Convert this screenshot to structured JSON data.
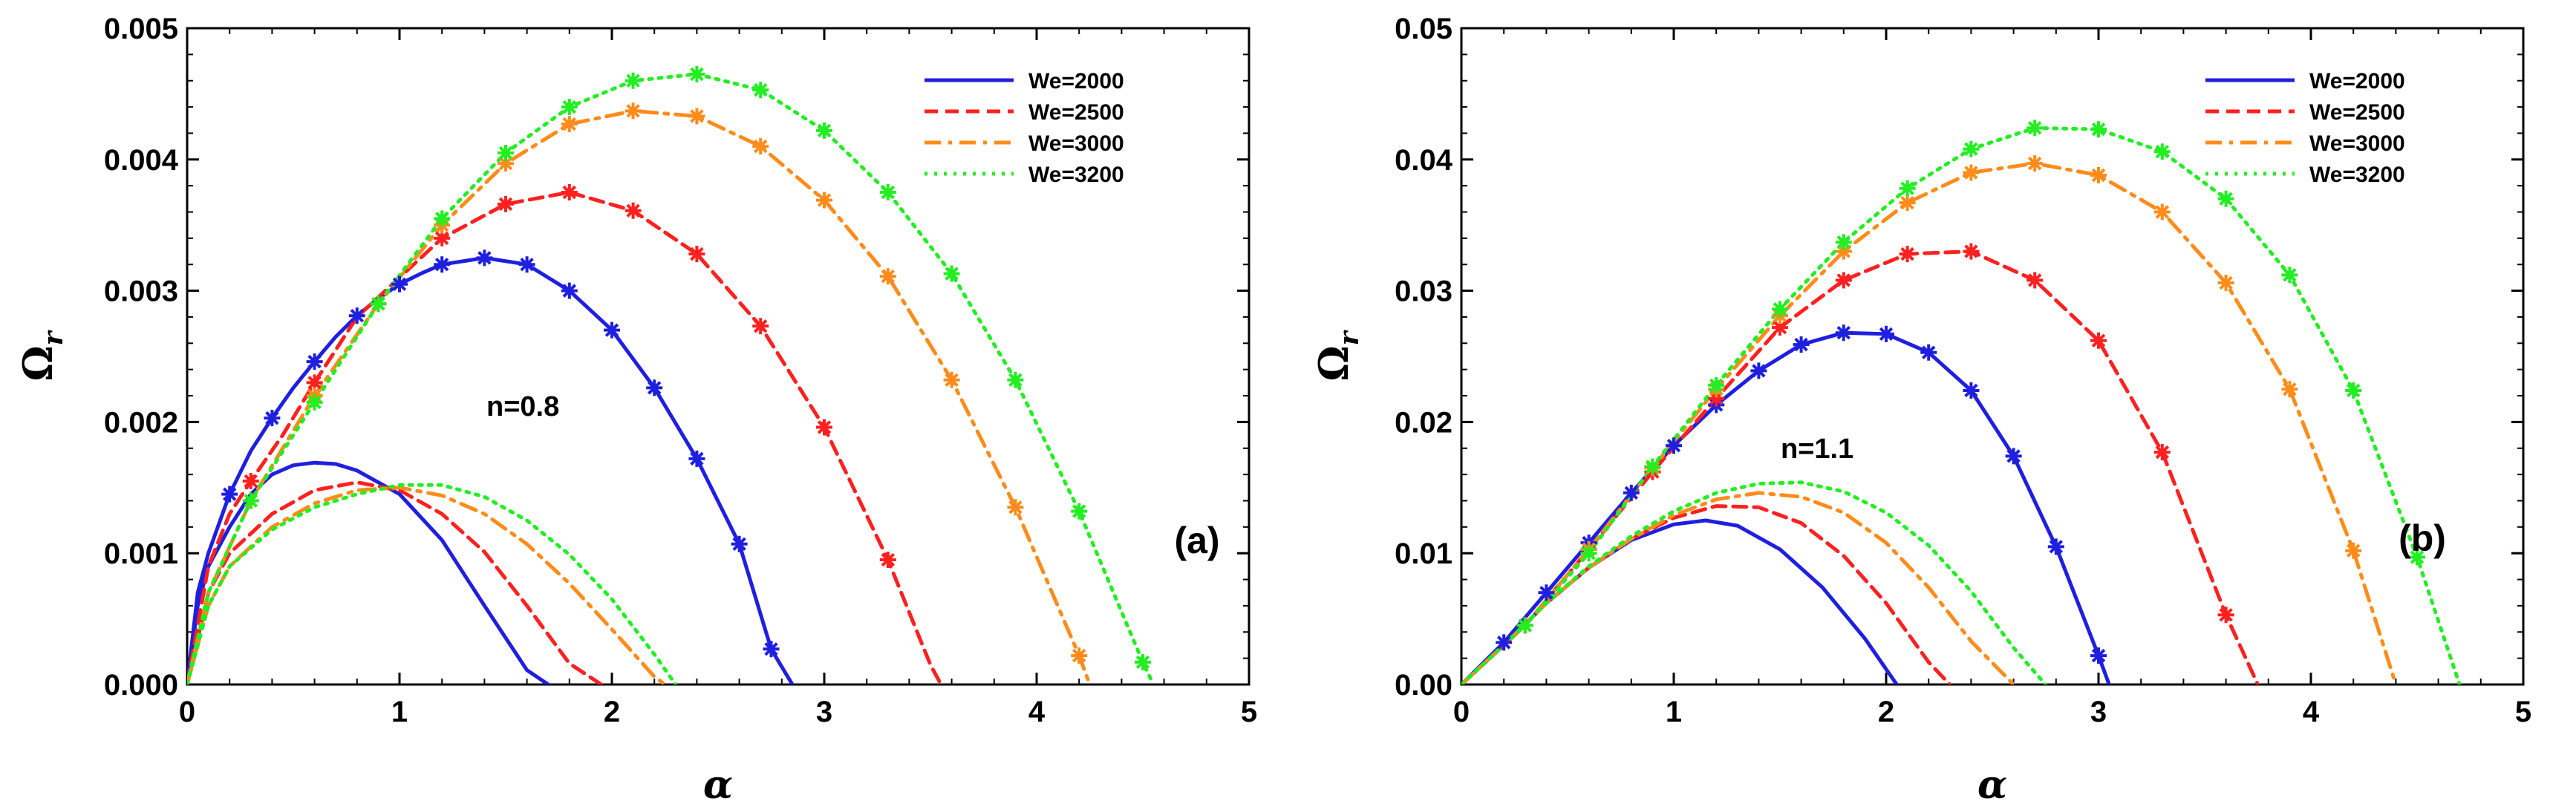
{
  "chart_data": [
    {
      "type": "line",
      "panel_label": "(a)",
      "annotation": "n=0.8",
      "xlabel": "α",
      "ylabel": "Ω",
      "ylabel_sub": "r",
      "xlim": [
        0,
        5
      ],
      "ylim": [
        0,
        0.005
      ],
      "x_ticks": [
        "0",
        "1",
        "2",
        "3",
        "4",
        "5"
      ],
      "y_ticks": [
        "0.000",
        "0.001",
        "0.002",
        "0.003",
        "0.004",
        "0.005"
      ],
      "legend": [
        "We=2000",
        "We=2500",
        "We=3000",
        "We=3200"
      ],
      "series": [
        {
          "name": "We=2000",
          "style": "solid",
          "color": "#1f1fe0",
          "x": [
            0,
            0.05,
            0.1,
            0.2,
            0.3,
            0.4,
            0.5,
            0.6,
            0.7,
            0.8,
            0.9,
            1.0,
            1.1,
            1.2,
            1.4,
            1.6,
            1.8,
            2.0,
            2.2,
            2.4,
            2.6,
            2.75,
            2.85
          ],
          "y": [
            0,
            0.0007,
            0.001,
            0.00145,
            0.00178,
            0.00203,
            0.00226,
            0.00246,
            0.00265,
            0.00281,
            0.00294,
            0.00305,
            0.00313,
            0.0032,
            0.00325,
            0.0032,
            0.003,
            0.0027,
            0.00226,
            0.00172,
            0.00107,
            0.00027,
            0
          ]
        },
        {
          "name": "We=2000",
          "style": "solid",
          "color": "#1f1fe0",
          "x": [
            0,
            0.05,
            0.1,
            0.2,
            0.3,
            0.4,
            0.5,
            0.6,
            0.7,
            0.8,
            1.0,
            1.2,
            1.4,
            1.6,
            1.7
          ],
          "y": [
            0,
            0.0006,
            0.0009,
            0.0012,
            0.00145,
            0.0016,
            0.00167,
            0.00169,
            0.00168,
            0.00163,
            0.00145,
            0.0011,
            0.0006,
            0.00011,
            0
          ]
        },
        {
          "name": "We=2500",
          "style": "dashed",
          "color": "#ff2020",
          "x": [
            0,
            0.1,
            0.2,
            0.3,
            0.45,
            0.6,
            0.8,
            1.0,
            1.2,
            1.5,
            1.8,
            2.1,
            2.4,
            2.7,
            3.0,
            3.3,
            3.5,
            3.55
          ],
          "y": [
            0,
            0.0009,
            0.0013,
            0.00155,
            0.0019,
            0.0023,
            0.0028,
            0.0031,
            0.0034,
            0.00366,
            0.00375,
            0.00361,
            0.00328,
            0.00273,
            0.00196,
            0.00095,
            0.00015,
            0
          ]
        },
        {
          "name": "We=2500",
          "style": "dashed",
          "color": "#ff2020",
          "x": [
            0,
            0.1,
            0.2,
            0.4,
            0.6,
            0.8,
            1.0,
            1.2,
            1.4,
            1.6,
            1.8,
            1.95
          ],
          "y": [
            0,
            0.0007,
            0.001,
            0.0013,
            0.00148,
            0.00154,
            0.00148,
            0.0013,
            0.00101,
            0.0006,
            0.00016,
            0
          ]
        },
        {
          "name": "We=3000",
          "style": "dashdot",
          "color": "#ff8c1a",
          "x": [
            0,
            0.1,
            0.3,
            0.6,
            0.9,
            1.2,
            1.5,
            1.8,
            2.1,
            2.4,
            2.7,
            3.0,
            3.3,
            3.6,
            3.9,
            4.2,
            4.25
          ],
          "y": [
            0,
            0.0007,
            0.0014,
            0.0022,
            0.0029,
            0.0035,
            0.00397,
            0.00427,
            0.00437,
            0.00433,
            0.0041,
            0.00369,
            0.00311,
            0.00232,
            0.00135,
            0.00022,
            0
          ]
        },
        {
          "name": "We=3000",
          "style": "dashdot",
          "color": "#ff8c1a",
          "x": [
            0,
            0.1,
            0.2,
            0.4,
            0.6,
            0.8,
            1.0,
            1.2,
            1.4,
            1.6,
            1.8,
            2.0,
            2.2,
            2.25
          ],
          "y": [
            0,
            0.0006,
            0.0009,
            0.0012,
            0.00138,
            0.00148,
            0.0015,
            0.00144,
            0.0013,
            0.00107,
            0.00077,
            0.00042,
            6e-05,
            0
          ]
        },
        {
          "name": "We=3200",
          "style": "dotted",
          "color": "#22ee22",
          "x": [
            0,
            0.1,
            0.3,
            0.6,
            0.9,
            1.2,
            1.5,
            1.8,
            2.1,
            2.4,
            2.7,
            3.0,
            3.3,
            3.6,
            3.9,
            4.2,
            4.5,
            4.55
          ],
          "y": [
            0,
            0.0007,
            0.0014,
            0.00215,
            0.0029,
            0.00355,
            0.00405,
            0.0044,
            0.0046,
            0.00465,
            0.00453,
            0.00422,
            0.00375,
            0.00313,
            0.00232,
            0.00132,
            0.00017,
            0
          ]
        },
        {
          "name": "We=3200",
          "style": "dotted",
          "color": "#22ee22",
          "x": [
            0,
            0.1,
            0.2,
            0.4,
            0.6,
            0.8,
            1.0,
            1.2,
            1.4,
            1.6,
            1.8,
            2.0,
            2.2,
            2.3
          ],
          "y": [
            0,
            0.0006,
            0.0009,
            0.00118,
            0.00135,
            0.00145,
            0.00152,
            0.00152,
            0.00143,
            0.00125,
            0.00099,
            0.00065,
            0.00023,
            0
          ]
        }
      ],
      "markers": [
        {
          "color": "#1f1fe0",
          "x": [
            0.2,
            0.4,
            0.6,
            0.8,
            1.0,
            1.2,
            1.4,
            1.6,
            1.8,
            2.0,
            2.2,
            2.4,
            2.6,
            2.75
          ],
          "y": [
            0.00145,
            0.00203,
            0.00246,
            0.00281,
            0.00305,
            0.0032,
            0.00325,
            0.0032,
            0.003,
            0.0027,
            0.00226,
            0.00172,
            0.00107,
            0.00027
          ]
        },
        {
          "color": "#ff2020",
          "x": [
            0.3,
            0.6,
            0.9,
            1.2,
            1.5,
            1.8,
            2.1,
            2.4,
            2.7,
            3.0,
            3.3
          ],
          "y": [
            0.00155,
            0.0023,
            0.0029,
            0.0034,
            0.00366,
            0.00375,
            0.00361,
            0.00328,
            0.00273,
            0.00196,
            0.00095
          ]
        },
        {
          "color": "#ff8c1a",
          "x": [
            0.3,
            0.6,
            0.9,
            1.2,
            1.5,
            1.8,
            2.1,
            2.4,
            2.7,
            3.0,
            3.3,
            3.6,
            3.9,
            4.2
          ],
          "y": [
            0.0014,
            0.0022,
            0.0029,
            0.0035,
            0.00397,
            0.00427,
            0.00437,
            0.00433,
            0.0041,
            0.00369,
            0.00311,
            0.00232,
            0.00135,
            0.00022
          ]
        },
        {
          "color": "#22ee22",
          "x": [
            0.3,
            0.6,
            0.9,
            1.2,
            1.5,
            1.8,
            2.1,
            2.4,
            2.7,
            3.0,
            3.3,
            3.6,
            3.9,
            4.2,
            4.5
          ],
          "y": [
            0.0014,
            0.00215,
            0.0029,
            0.00355,
            0.00405,
            0.0044,
            0.0046,
            0.00465,
            0.00453,
            0.00422,
            0.00375,
            0.00313,
            0.00232,
            0.00132,
            0.00017
          ]
        }
      ]
    },
    {
      "type": "line",
      "panel_label": "(b)",
      "annotation": "n=1.1",
      "xlabel": "α",
      "ylabel": "Ω",
      "ylabel_sub": "r",
      "xlim": [
        0,
        5
      ],
      "ylim": [
        0,
        0.05
      ],
      "x_ticks": [
        "0",
        "1",
        "2",
        "3",
        "4",
        "5"
      ],
      "y_ticks": [
        "0.00",
        "0.01",
        "0.02",
        "0.03",
        "0.04",
        "0.05"
      ],
      "legend": [
        "We=2000",
        "We=2500",
        "We=3000",
        "We=3200"
      ],
      "series": [
        {
          "name": "We=2000",
          "style": "solid",
          "color": "#1f1fe0",
          "x": [
            0,
            0.2,
            0.4,
            0.6,
            0.8,
            1.0,
            1.2,
            1.4,
            1.6,
            1.8,
            2.0,
            2.2,
            2.4,
            2.6,
            2.8,
            3.0,
            3.05
          ],
          "y": [
            0,
            0.0032,
            0.007,
            0.0108,
            0.0146,
            0.0182,
            0.0213,
            0.0239,
            0.0259,
            0.0268,
            0.0267,
            0.0253,
            0.0224,
            0.0174,
            0.0105,
            0.0022,
            0
          ]
        },
        {
          "name": "We=2000",
          "style": "solid",
          "color": "#1f1fe0",
          "x": [
            0,
            0.2,
            0.4,
            0.6,
            0.8,
            1.0,
            1.15,
            1.3,
            1.5,
            1.7,
            1.9,
            2.05
          ],
          "y": [
            0,
            0.003,
            0.0062,
            0.0089,
            0.011,
            0.0122,
            0.0125,
            0.0121,
            0.0103,
            0.0074,
            0.0035,
            0
          ]
        },
        {
          "name": "We=2500",
          "style": "dashed",
          "color": "#ff2020",
          "x": [
            0,
            0.3,
            0.6,
            0.9,
            1.2,
            1.5,
            1.8,
            2.1,
            2.4,
            2.7,
            3.0,
            3.3,
            3.6,
            3.75
          ],
          "y": [
            0,
            0.0045,
            0.0103,
            0.0162,
            0.0218,
            0.0272,
            0.0308,
            0.0328,
            0.033,
            0.0308,
            0.0262,
            0.0177,
            0.0053,
            0
          ]
        },
        {
          "name": "We=2500",
          "style": "dashed",
          "color": "#ff2020",
          "x": [
            0,
            0.2,
            0.4,
            0.6,
            0.8,
            1.0,
            1.2,
            1.4,
            1.6,
            1.8,
            2.0,
            2.2,
            2.3
          ],
          "y": [
            0,
            0.003,
            0.0062,
            0.0089,
            0.0111,
            0.0127,
            0.0136,
            0.0135,
            0.0123,
            0.0098,
            0.0062,
            0.0017,
            0
          ]
        },
        {
          "name": "We=3000",
          "style": "dashdot",
          "color": "#ff8c1a",
          "x": [
            0,
            0.3,
            0.6,
            0.9,
            1.2,
            1.5,
            1.8,
            2.1,
            2.4,
            2.7,
            3.0,
            3.3,
            3.6,
            3.9,
            4.2,
            4.4
          ],
          "y": [
            0,
            0.0045,
            0.0103,
            0.0165,
            0.0225,
            0.0281,
            0.033,
            0.0367,
            0.039,
            0.0397,
            0.0388,
            0.036,
            0.0306,
            0.0225,
            0.0102,
            0
          ]
        },
        {
          "name": "We=3000",
          "style": "dashdot",
          "color": "#ff8c1a",
          "x": [
            0,
            0.2,
            0.4,
            0.6,
            0.8,
            1.0,
            1.2,
            1.4,
            1.6,
            1.8,
            2.0,
            2.2,
            2.4,
            2.6
          ],
          "y": [
            0,
            0.003,
            0.0062,
            0.0089,
            0.0111,
            0.0129,
            0.0141,
            0.0146,
            0.0143,
            0.0131,
            0.0108,
            0.0074,
            0.0033,
            0
          ]
        },
        {
          "name": "We=3200",
          "style": "dotted",
          "color": "#22ee22",
          "x": [
            0,
            0.3,
            0.6,
            0.9,
            1.2,
            1.5,
            1.8,
            2.1,
            2.4,
            2.7,
            3.0,
            3.3,
            3.6,
            3.9,
            4.2,
            4.5,
            4.7
          ],
          "y": [
            0,
            0.0045,
            0.01,
            0.0166,
            0.0228,
            0.0286,
            0.0337,
            0.0378,
            0.0408,
            0.0424,
            0.0423,
            0.0406,
            0.037,
            0.0312,
            0.0224,
            0.0097,
            0
          ]
        },
        {
          "name": "We=3200",
          "style": "dotted",
          "color": "#22ee22",
          "x": [
            0,
            0.2,
            0.4,
            0.6,
            0.8,
            1.0,
            1.2,
            1.4,
            1.6,
            1.8,
            2.0,
            2.2,
            2.4,
            2.6,
            2.75
          ],
          "y": [
            0,
            0.003,
            0.0062,
            0.009,
            0.0113,
            0.0132,
            0.0146,
            0.0153,
            0.0154,
            0.0147,
            0.0131,
            0.0106,
            0.0071,
            0.0028,
            0
          ]
        }
      ],
      "markers": [
        {
          "color": "#1f1fe0",
          "x": [
            0.2,
            0.4,
            0.6,
            0.8,
            1.0,
            1.2,
            1.4,
            1.6,
            1.8,
            2.0,
            2.2,
            2.4,
            2.6,
            2.8,
            3.0
          ],
          "y": [
            0.0032,
            0.007,
            0.0108,
            0.0146,
            0.0182,
            0.0213,
            0.0239,
            0.0259,
            0.0268,
            0.0267,
            0.0253,
            0.0224,
            0.0174,
            0.0105,
            0.0022
          ]
        },
        {
          "color": "#ff2020",
          "x": [
            0.3,
            0.6,
            0.9,
            1.2,
            1.5,
            1.8,
            2.1,
            2.4,
            2.7,
            3.0,
            3.3,
            3.6
          ],
          "y": [
            0.0045,
            0.0103,
            0.0162,
            0.0218,
            0.0272,
            0.0308,
            0.0328,
            0.033,
            0.0308,
            0.0262,
            0.0177,
            0.0053
          ]
        },
        {
          "color": "#ff8c1a",
          "x": [
            0.3,
            0.6,
            0.9,
            1.2,
            1.5,
            1.8,
            2.1,
            2.4,
            2.7,
            3.0,
            3.3,
            3.6,
            3.9,
            4.2
          ],
          "y": [
            0.0045,
            0.0103,
            0.0165,
            0.0225,
            0.0281,
            0.033,
            0.0367,
            0.039,
            0.0397,
            0.0388,
            0.036,
            0.0306,
            0.0225,
            0.0102
          ]
        },
        {
          "color": "#22ee22",
          "x": [
            0.3,
            0.6,
            0.9,
            1.2,
            1.5,
            1.8,
            2.1,
            2.4,
            2.7,
            3.0,
            3.3,
            3.6,
            3.9,
            4.2,
            4.5
          ],
          "y": [
            0.0045,
            0.01,
            0.0166,
            0.0228,
            0.0286,
            0.0337,
            0.0378,
            0.0408,
            0.0424,
            0.0423,
            0.0406,
            0.037,
            0.0312,
            0.0224,
            0.0097
          ]
        }
      ]
    }
  ]
}
